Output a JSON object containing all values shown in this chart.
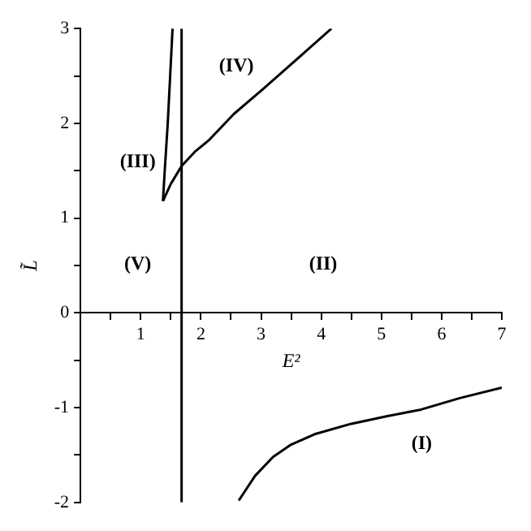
{
  "chart_data": {
    "type": "line",
    "xlabel": "E²",
    "ylabel": "L̃",
    "xlim": [
      0,
      7
    ],
    "ylim": [
      -2,
      3
    ],
    "xticks": [
      {
        "value": 0.5,
        "label": null
      },
      1,
      {
        "value": 1.5,
        "label": null
      },
      2,
      {
        "value": 2.5,
        "label": null
      },
      3,
      {
        "value": 3.5,
        "label": null
      },
      4,
      {
        "value": 4.5,
        "label": null
      },
      5,
      {
        "value": 5.5,
        "label": null
      },
      6,
      {
        "value": 6.5,
        "label": null
      },
      7
    ],
    "yticks": [
      -2,
      {
        "value": -1.5,
        "label": null
      },
      -1,
      {
        "value": -0.5,
        "label": null
      },
      0,
      {
        "value": 0.5,
        "label": null
      },
      1,
      {
        "value": 1.5,
        "label": null
      },
      2,
      {
        "value": 2.5,
        "label": null
      },
      3
    ],
    "grid": false,
    "legend": false,
    "marker": "none",
    "line_style": "solid",
    "series": [
      {
        "color": "#000000",
        "x": [
          1.68,
          1.68
        ],
        "values": [
          -2,
          3
        ]
      },
      {
        "color": "#000000",
        "x": [
          1.37,
          1.4,
          1.45,
          1.49,
          1.53
        ],
        "values": [
          1.18,
          1.5,
          2,
          2.5,
          3
        ]
      },
      {
        "color": "#000000",
        "x": [
          1.37,
          1.5,
          1.68,
          1.9,
          2.13,
          2.55,
          3.03,
          3.6,
          4.17
        ],
        "values": [
          1.18,
          1.36,
          1.55,
          1.7,
          1.82,
          2.1,
          2.36,
          2.68,
          3
        ]
      },
      {
        "color": "#000000",
        "x": [
          2.63,
          2.9,
          3.2,
          3.5,
          3.89,
          4.5,
          5.1,
          5.66,
          6.3,
          7
        ],
        "values": [
          -1.98,
          -1.72,
          -1.52,
          -1.39,
          -1.28,
          -1.17,
          -1.09,
          -1.02,
          -0.9,
          -0.79
        ]
      }
    ],
    "annotations": [
      "(I)",
      "(II)",
      "(III)",
      "(IV)",
      "(V)"
    ]
  }
}
